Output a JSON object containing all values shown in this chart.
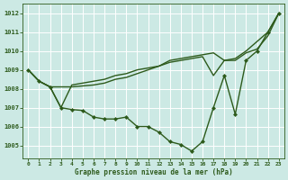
{
  "title": "Graphe pression niveau de la mer (hPa)",
  "bg_color": "#cce9e4",
  "grid_color": "#ffffff",
  "line_color": "#2d5a1b",
  "xlim": [
    -0.5,
    23.5
  ],
  "ylim": [
    1004.3,
    1012.5
  ],
  "yticks": [
    1005,
    1006,
    1007,
    1008,
    1009,
    1010,
    1011,
    1012
  ],
  "xticks": [
    0,
    1,
    2,
    3,
    4,
    5,
    6,
    7,
    8,
    9,
    10,
    11,
    12,
    13,
    14,
    15,
    16,
    17,
    18,
    19,
    20,
    21,
    22,
    23
  ],
  "series": [
    {
      "x": [
        0,
        1,
        2,
        3,
        4,
        5,
        6,
        7,
        8,
        9,
        10,
        11,
        12,
        13,
        14,
        15,
        16,
        17,
        18,
        19,
        20,
        21,
        22,
        23
      ],
      "y": [
        1009.0,
        1008.4,
        1008.1,
        1008.1,
        1008.1,
        1008.15,
        1008.2,
        1008.3,
        1008.5,
        1008.6,
        1008.8,
        1009.0,
        1009.2,
        1009.5,
        1009.6,
        1009.7,
        1009.8,
        1009.9,
        1009.5,
        1009.6,
        1010.0,
        1010.5,
        1011.0,
        1012.0
      ],
      "marker": null,
      "linewidth": 1.0
    },
    {
      "x": [
        0,
        1,
        2,
        3,
        4,
        5,
        6,
        7,
        8,
        9,
        10,
        11,
        12,
        13,
        14,
        15,
        16,
        17,
        18,
        19,
        20,
        21,
        22,
        23
      ],
      "y": [
        1009.0,
        1008.4,
        1008.1,
        1007.0,
        1008.2,
        1008.3,
        1008.4,
        1008.5,
        1008.7,
        1008.8,
        1009.0,
        1009.1,
        1009.2,
        1009.4,
        1009.5,
        1009.6,
        1009.7,
        1008.7,
        1009.5,
        1009.5,
        1009.9,
        1010.1,
        1010.8,
        1012.0
      ],
      "marker": null,
      "linewidth": 1.0
    },
    {
      "x": [
        0,
        1,
        2,
        3,
        4,
        5,
        6,
        7,
        8,
        9,
        10,
        11,
        12,
        13,
        14,
        15,
        16,
        17,
        18,
        19,
        20,
        21,
        22,
        23
      ],
      "y": [
        1009.0,
        1008.4,
        1008.1,
        1007.0,
        1006.9,
        1006.85,
        1006.5,
        1006.4,
        1006.4,
        1006.5,
        1006.0,
        1006.0,
        1005.7,
        1005.2,
        1005.05,
        1004.7,
        1005.2,
        1007.0,
        1008.7,
        1006.65,
        1009.5,
        1010.0,
        1011.0,
        1012.0
      ],
      "marker": "D",
      "linewidth": 1.0
    }
  ]
}
